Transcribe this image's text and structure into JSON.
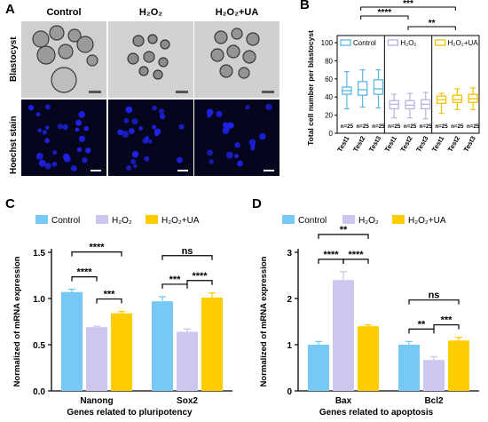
{
  "panel_a": {
    "letter": "A",
    "columns": [
      {
        "label": "Control"
      },
      {
        "label": "H₂O₂"
      },
      {
        "label": "H₂O₂+UA"
      }
    ],
    "rows": [
      {
        "label": "Blastocyst"
      },
      {
        "label": "Hoechst stain"
      }
    ]
  },
  "chart_data": [
    {
      "panel": "B",
      "type": "boxplot",
      "ylabel": "Total cell number per blastocyst",
      "ylim": [
        0,
        100
      ],
      "yticks": [
        0,
        20,
        40,
        60,
        80,
        100
      ],
      "categories": [
        "Test1",
        "Test2",
        "Test3"
      ],
      "colors": {
        "Control": "#5ab7e6",
        "H₂O₂": "#b6b3e0",
        "H₂O₂+UA": "#f2c200"
      },
      "legend": [
        "Control",
        "H₂O₂",
        "H₂O₂+UA"
      ],
      "groups": [
        {
          "name": "Control",
          "boxes": [
            {
              "label": "Test1",
              "min": 27,
              "q1": 43,
              "median": 47,
              "q3": 51,
              "max": 68
            },
            {
              "label": "Test2",
              "min": 29,
              "q1": 42,
              "median": 48,
              "q3": 57,
              "max": 70
            },
            {
              "label": "Test3",
              "min": 28,
              "q1": 43,
              "median": 49,
              "q3": 59,
              "max": 70
            }
          ],
          "n": [
            "n=25",
            "n=25",
            "n=25"
          ]
        },
        {
          "name": "H₂O₂",
          "boxes": [
            {
              "label": "Test1",
              "min": 17,
              "q1": 27,
              "median": 32,
              "q3": 36,
              "max": 43
            },
            {
              "label": "Test2",
              "min": 17,
              "q1": 27,
              "median": 31,
              "q3": 36,
              "max": 44
            },
            {
              "label": "Test3",
              "min": 16,
              "q1": 27,
              "median": 32,
              "q3": 37,
              "max": 45
            }
          ],
          "n": [
            "n=25",
            "n=25",
            "n=25"
          ]
        },
        {
          "name": "H₂O₂+UA",
          "boxes": [
            {
              "label": "Test1",
              "min": 22,
              "q1": 33,
              "median": 37,
              "q3": 41,
              "max": 44
            },
            {
              "label": "Test2",
              "min": 26,
              "q1": 34,
              "median": 37,
              "q3": 42,
              "max": 49
            },
            {
              "label": "Test3",
              "min": 26,
              "q1": 34,
              "median": 38,
              "q3": 43,
              "max": 50
            }
          ],
          "n": [
            "n=25",
            "n=25",
            "n=25"
          ]
        }
      ],
      "significance": [
        {
          "text": "****",
          "from": "Control",
          "to": "H₂O₂"
        },
        {
          "text": "***",
          "from": "Control",
          "to": "H₂O₂+UA"
        },
        {
          "text": "**",
          "from": "H₂O₂",
          "to": "H₂O₂+UA"
        }
      ]
    },
    {
      "panel": "C",
      "type": "bar",
      "xlabel": "Genes related to pluripotency",
      "ylabel": "Normalized  of mRNA expression",
      "ylim": [
        0,
        1.5
      ],
      "yticks": [
        "0.0",
        "0.5",
        "1.0",
        "1.5"
      ],
      "categories": [
        "Nanong",
        "Sox2"
      ],
      "series": [
        {
          "name": "Control",
          "color": "#76c8f5",
          "values": [
            1.07,
            0.97
          ],
          "errors": [
            0.03,
            0.05
          ]
        },
        {
          "name": "H₂O₂",
          "color": "#cbc7ee",
          "values": [
            0.69,
            0.64
          ],
          "errors": [
            0.01,
            0.03
          ]
        },
        {
          "name": "H₂O₂+UA",
          "color": "#ffcc00",
          "values": [
            0.84,
            1.01
          ],
          "errors": [
            0.02,
            0.05
          ]
        }
      ],
      "significance": [
        {
          "text": "****",
          "category": 0,
          "from": 0,
          "to": 2
        },
        {
          "text": "****",
          "category": 0,
          "from": 0,
          "to": 1
        },
        {
          "text": "***",
          "category": 0,
          "from": 1,
          "to": 2
        },
        {
          "text": "ns",
          "category": 1,
          "from": 0,
          "to": 2
        },
        {
          "text": "****",
          "category": 1,
          "from": 1,
          "to": 2
        },
        {
          "text": "***",
          "category": 1,
          "from": 0,
          "to": 1
        }
      ]
    },
    {
      "panel": "D",
      "type": "bar",
      "xlabel": "Genes related to apoptosis",
      "ylabel": "Normalized  of mRNA expression",
      "ylim": [
        0,
        3
      ],
      "yticks": [
        "0",
        "1",
        "2",
        "3"
      ],
      "categories": [
        "Bax",
        "Bcl2"
      ],
      "series": [
        {
          "name": "Control",
          "color": "#76c8f5",
          "values": [
            1.0,
            1.0
          ],
          "errors": [
            0.07,
            0.07
          ]
        },
        {
          "name": "H₂O₂",
          "color": "#cbc7ee",
          "values": [
            2.4,
            0.67
          ],
          "errors": [
            0.18,
            0.07
          ]
        },
        {
          "name": "H₂O₂+UA",
          "color": "#ffcc00",
          "values": [
            1.4,
            1.09
          ],
          "errors": [
            0.03,
            0.07
          ]
        }
      ],
      "significance": [
        {
          "text": "**",
          "category": 0,
          "from": 0,
          "to": 2
        },
        {
          "text": "****",
          "category": 0,
          "from": 0,
          "to": 1
        },
        {
          "text": "****",
          "category": 0,
          "from": 1,
          "to": 2
        },
        {
          "text": "ns",
          "category": 1,
          "from": 0,
          "to": 2
        },
        {
          "text": "***",
          "category": 1,
          "from": 1,
          "to": 2
        },
        {
          "text": "**",
          "category": 1,
          "from": 0,
          "to": 1
        }
      ]
    }
  ]
}
